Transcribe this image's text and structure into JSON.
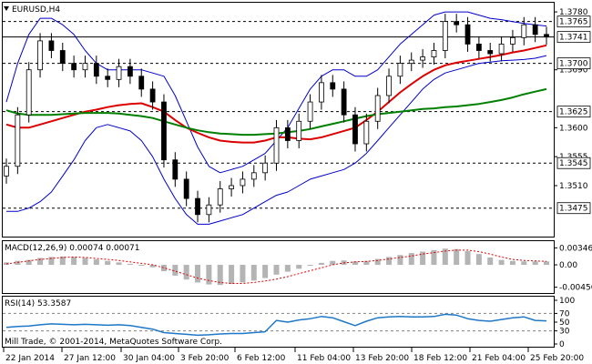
{
  "chart_data": [
    {
      "type": "line",
      "pane": "price",
      "title": "EURUSD,H4",
      "ylim": [
        1.3435,
        1.379
      ],
      "y_ticks": [
        "1.3780",
        "1.3690",
        "1.3600",
        "1.3555",
        "1.3510"
      ],
      "price_labels": [
        {
          "label": "1.3765",
          "value": 1.3765,
          "style": "dashed",
          "boxed": true
        },
        {
          "label": "1.3741",
          "value": 1.3741,
          "style": "solid",
          "boxed": true
        },
        {
          "label": "1.3700",
          "value": 1.37,
          "style": "dashed",
          "boxed": true
        },
        {
          "label": "1.3625",
          "value": 1.3625,
          "style": "dashed",
          "boxed": true
        },
        {
          "label": "1.3545",
          "value": 1.3545,
          "style": "dashed",
          "boxed": true
        },
        {
          "label": "1.3475",
          "value": 1.3475,
          "style": "dashed",
          "boxed": true
        }
      ],
      "x_ticks": [
        "22 Jan 2014",
        "27 Jan 12:00",
        "30 Jan 04:00",
        "3 Feb 20:00",
        "6 Feb 12:00",
        "11 Feb 04:00",
        "13 Feb 20:00",
        "18 Feb 12:00",
        "21 Feb 04:00",
        "25 Feb 20:00"
      ],
      "colors": {
        "candles": "#000000",
        "bands": "#0000cc",
        "ma_fast": "#dd0000",
        "ma_slow": "#008000",
        "grid": "#000000"
      },
      "series": [
        {
          "role": "close",
          "values": [
            1.354,
            1.362,
            1.369,
            1.3735,
            1.372,
            1.37,
            1.369,
            1.37,
            1.368,
            1.3675,
            1.3695,
            1.368,
            1.366,
            1.364,
            1.355,
            1.352,
            1.349,
            1.3465,
            1.348,
            1.3505,
            1.351,
            1.352,
            1.353,
            1.3545,
            1.36,
            1.358,
            1.361,
            1.364,
            1.367,
            1.366,
            1.362,
            1.3575,
            1.361,
            1.365,
            1.368,
            1.37,
            1.3705,
            1.371,
            1.372,
            1.3765,
            1.376,
            1.373,
            1.372,
            1.3715,
            1.373,
            1.374,
            1.376,
            1.3745,
            1.3741
          ]
        },
        {
          "role": "bollinger-upper",
          "values": [
            1.364,
            1.37,
            1.3745,
            1.377,
            1.377,
            1.376,
            1.3745,
            1.372,
            1.37,
            1.369,
            1.369,
            1.369,
            1.369,
            1.3685,
            1.368,
            1.365,
            1.361,
            1.357,
            1.354,
            1.353,
            1.3535,
            1.354,
            1.355,
            1.356,
            1.358,
            1.36,
            1.363,
            1.366,
            1.368,
            1.369,
            1.369,
            1.368,
            1.368,
            1.369,
            1.371,
            1.373,
            1.3745,
            1.376,
            1.3775,
            1.378,
            1.378,
            1.378,
            1.3775,
            1.377,
            1.3768,
            1.3765,
            1.3762,
            1.376,
            1.3758
          ]
        },
        {
          "role": "bollinger-lower",
          "values": [
            1.347,
            1.347,
            1.3475,
            1.3485,
            1.35,
            1.3525,
            1.355,
            1.358,
            1.36,
            1.3605,
            1.36,
            1.3595,
            1.358,
            1.3555,
            1.352,
            1.349,
            1.3465,
            1.345,
            1.345,
            1.3455,
            1.346,
            1.3465,
            1.3475,
            1.3485,
            1.3495,
            1.35,
            1.351,
            1.352,
            1.3525,
            1.353,
            1.3535,
            1.3545,
            1.356,
            1.358,
            1.36,
            1.362,
            1.364,
            1.366,
            1.3675,
            1.3685,
            1.369,
            1.3695,
            1.37,
            1.3702,
            1.3704,
            1.3705,
            1.3706,
            1.3708,
            1.3712
          ]
        },
        {
          "role": "ma-fast",
          "values": [
            1.3605,
            1.36,
            1.36,
            1.3605,
            1.361,
            1.3615,
            1.362,
            1.3625,
            1.3628,
            1.3632,
            1.3635,
            1.3637,
            1.3638,
            1.3632,
            1.3625,
            1.3612,
            1.36,
            1.3592,
            1.3585,
            1.358,
            1.3578,
            1.3577,
            1.3577,
            1.358,
            1.3585,
            1.3585,
            1.3583,
            1.3582,
            1.3585,
            1.359,
            1.3595,
            1.36,
            1.3612,
            1.3625,
            1.364,
            1.3655,
            1.3668,
            1.368,
            1.369,
            1.3697,
            1.3701,
            1.3704,
            1.3707,
            1.371,
            1.3713,
            1.3717,
            1.372,
            1.3724,
            1.3728
          ]
        },
        {
          "role": "ma-slow",
          "values": [
            1.3627,
            1.3622,
            1.362,
            1.362,
            1.362,
            1.3621,
            1.3622,
            1.3623,
            1.3623,
            1.3623,
            1.3622,
            1.362,
            1.3618,
            1.3615,
            1.361,
            1.3605,
            1.36,
            1.3596,
            1.3593,
            1.3591,
            1.359,
            1.3589,
            1.3589,
            1.359,
            1.3591,
            1.3593,
            1.3595,
            1.3598,
            1.3602,
            1.3606,
            1.361,
            1.3614,
            1.3618,
            1.3621,
            1.3623,
            1.3625,
            1.3627,
            1.3629,
            1.363,
            1.3632,
            1.3633,
            1.3635,
            1.3637,
            1.364,
            1.3643,
            1.3647,
            1.3652,
            1.3656,
            1.366
          ]
        }
      ]
    },
    {
      "type": "bar",
      "pane": "macd",
      "title": "MACD(12,26,9) 0.00074 0.00071",
      "ylim": [
        -0.005,
        0.0039
      ],
      "y_ticks": [
        "0.00346",
        "0.00",
        "-0.00456"
      ],
      "colors": {
        "histogram": "#b4b4b4",
        "signal": "#dd0000"
      },
      "series": [
        {
          "role": "macd-histogram",
          "values": [
            0.0005,
            0.0008,
            0.001,
            0.0014,
            0.0016,
            0.0017,
            0.0016,
            0.0014,
            0.0011,
            0.0008,
            0.0005,
            0.0002,
            0.0,
            -0.0005,
            -0.0013,
            -0.0022,
            -0.003,
            -0.0036,
            -0.004,
            -0.0041,
            -0.0039,
            -0.0036,
            -0.0032,
            -0.0027,
            -0.002,
            -0.0014,
            -0.0008,
            -0.0002,
            0.0004,
            0.0008,
            0.0009,
            0.0007,
            0.0008,
            0.0012,
            0.0016,
            0.002,
            0.0024,
            0.0027,
            0.003,
            0.0033,
            0.0032,
            0.0028,
            0.0022,
            0.0015,
            0.001,
            0.0008,
            0.0007,
            0.0007,
            0.0007
          ]
        },
        {
          "role": "macd-signal",
          "values": [
            0.0002,
            0.0005,
            0.0008,
            0.0011,
            0.0013,
            0.0015,
            0.0016,
            0.0015,
            0.0013,
            0.0011,
            0.0009,
            0.0006,
            0.0003,
            0.0,
            -0.0006,
            -0.0013,
            -0.002,
            -0.0027,
            -0.0032,
            -0.0036,
            -0.0038,
            -0.0038,
            -0.0036,
            -0.0033,
            -0.0029,
            -0.0024,
            -0.0018,
            -0.0012,
            -0.0006,
            0.0,
            0.0004,
            0.0006,
            0.0007,
            0.0009,
            0.0012,
            0.0015,
            0.0018,
            0.0022,
            0.0025,
            0.0028,
            0.003,
            0.003,
            0.0027,
            0.0022,
            0.0016,
            0.0011,
            0.0009,
            0.0008,
            0.0007
          ]
        }
      ]
    },
    {
      "type": "line",
      "pane": "rsi",
      "title": "RSI(14) 53.3587",
      "ylim": [
        0,
        100
      ],
      "y_ticks": [
        "100",
        "70",
        "50",
        "30",
        "0"
      ],
      "levels": [
        70,
        30
      ],
      "colors": {
        "line": "#1e78c8",
        "levels": "#808080"
      },
      "series": [
        {
          "role": "rsi",
          "values": [
            38,
            40,
            41,
            44,
            46,
            45,
            44,
            45,
            44,
            43,
            44,
            42,
            38,
            34,
            26,
            24,
            22,
            20,
            21,
            23,
            24,
            24,
            26,
            28,
            54,
            50,
            55,
            58,
            63,
            60,
            51,
            42,
            52,
            60,
            62,
            63,
            62,
            62,
            63,
            68,
            66,
            58,
            54,
            52,
            56,
            60,
            62,
            54,
            53
          ]
        }
      ]
    }
  ],
  "footer": {
    "copyright": "Mill Trade, © 2001-2014, MetaQuotes Software Corp."
  },
  "icons": {
    "menu_triangle": "triangle-down-icon"
  }
}
